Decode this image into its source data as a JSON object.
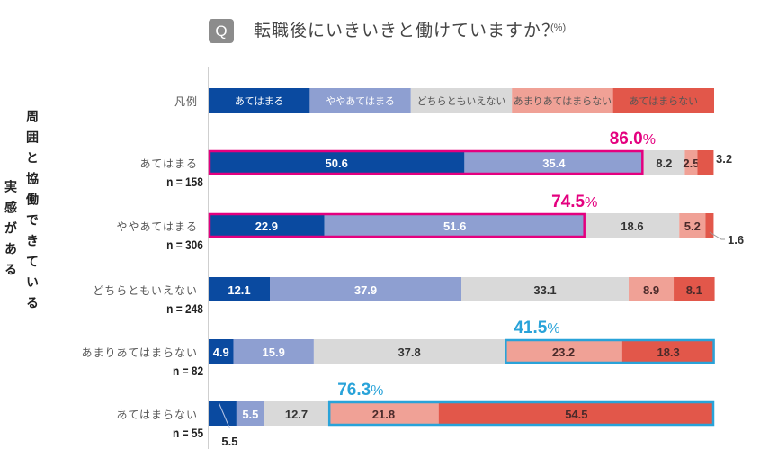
{
  "header": {
    "badge": "Q",
    "title": "転職後にいきいきと働けていますか？",
    "unit": "(%)"
  },
  "side_labels": {
    "right_column": "周囲と協働できている",
    "left_column": "実感がある"
  },
  "colors": {
    "atehamaru": "#0a4aa0",
    "yaya_atehamaru": "#8e9fd1",
    "dochira": "#d9d9d9",
    "amari": "#f0a196",
    "atehamaranai": "#e2574a",
    "positive_highlight": "#e4007f",
    "negative_highlight": "#29a3d9"
  },
  "chart_data": {
    "type": "bar",
    "orientation": "horizontal",
    "stacked": true,
    "title": "転職後にいきいきと働けていますか？",
    "unit": "%",
    "xlim": [
      0,
      100
    ],
    "legend": {
      "label": "凡例",
      "placement": "top",
      "entries": [
        "あてはまる",
        "ややあてはまる",
        "どちらともいえない",
        "あまりあてはまらない",
        "あてはまらない"
      ]
    },
    "categories": [
      {
        "label": "あてはまる",
        "n": "n = 158"
      },
      {
        "label": "ややあてはまる",
        "n": "n = 306"
      },
      {
        "label": "どちらともいえない",
        "n": "n = 248"
      },
      {
        "label": "あまりあてはまらない",
        "n": "n = 82"
      },
      {
        "label": "あてはまらない",
        "n": "n = 55"
      }
    ],
    "series": [
      {
        "name": "あてはまる",
        "values": [
          50.6,
          22.9,
          12.1,
          4.9,
          5.5
        ]
      },
      {
        "name": "ややあてはまる",
        "values": [
          35.4,
          51.6,
          37.9,
          15.9,
          5.5
        ]
      },
      {
        "name": "どちらともいえない",
        "values": [
          8.2,
          18.6,
          33.1,
          37.8,
          12.7
        ]
      },
      {
        "name": "あまりあてはまらない",
        "values": [
          2.5,
          5.2,
          8.9,
          23.2,
          21.8
        ]
      },
      {
        "name": "あてはまらない",
        "values": [
          3.2,
          1.6,
          8.1,
          18.3,
          54.5
        ]
      }
    ],
    "annotations": [
      {
        "row": 0,
        "text": "86.0",
        "suffix": "%",
        "type": "positive",
        "segments": [
          0,
          1
        ]
      },
      {
        "row": 1,
        "text": "74.5",
        "suffix": "%",
        "type": "positive",
        "segments": [
          0,
          1
        ]
      },
      {
        "row": 3,
        "text": "41.5",
        "suffix": "%",
        "type": "negative",
        "segments": [
          3,
          4
        ]
      },
      {
        "row": 4,
        "text": "76.3",
        "suffix": "%",
        "type": "negative",
        "segments": [
          3,
          4
        ]
      }
    ],
    "outside_labels": [
      {
        "row": 0,
        "segment": 4,
        "text": "3.2"
      },
      {
        "row": 1,
        "segment": 4,
        "text": "1.6"
      },
      {
        "row": 4,
        "segment": 0,
        "text": "5.5"
      }
    ]
  }
}
